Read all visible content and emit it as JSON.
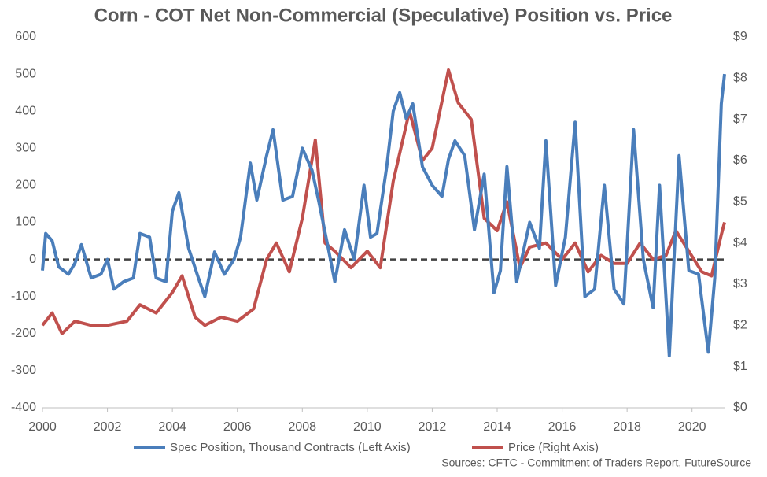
{
  "chart_data": {
    "type": "line",
    "title": "Corn - COT Net Non-Commercial (Speculative) Position vs. Price",
    "source": "Sources: CFTC - Commitment of Traders Report, FutureSource",
    "xlim": [
      2000,
      2021
    ],
    "xticks": [
      2000,
      2002,
      2004,
      2006,
      2008,
      2010,
      2012,
      2014,
      2016,
      2018,
      2020
    ],
    "ylim": [
      -400,
      600
    ],
    "yticks": [
      -400,
      -300,
      -200,
      -100,
      0,
      100,
      200,
      300,
      400,
      500,
      600
    ],
    "y2lim": [
      0,
      9
    ],
    "y2ticks": [
      {
        "value": 0,
        "label": "$0"
      },
      {
        "value": 1,
        "label": "$1"
      },
      {
        "value": 2,
        "label": "$2"
      },
      {
        "value": 3,
        "label": "$3"
      },
      {
        "value": 4,
        "label": "$4"
      },
      {
        "value": 5,
        "label": "$5"
      },
      {
        "value": 6,
        "label": "$6"
      },
      {
        "value": 7,
        "label": "$7"
      },
      {
        "value": 8,
        "label": "$8"
      },
      {
        "value": 9,
        "label": "$9"
      }
    ],
    "zero_line": 0,
    "series": [
      {
        "name": "Spec Position, Thousand Contracts (Left Axis)",
        "color": "#4a7ebb",
        "x": [
          2000.0,
          2000.1,
          2000.3,
          2000.5,
          2000.8,
          2001.0,
          2001.2,
          2001.5,
          2001.8,
          2002.0,
          2002.2,
          2002.5,
          2002.8,
          2003.0,
          2003.3,
          2003.5,
          2003.8,
          2004.0,
          2004.2,
          2004.5,
          2004.8,
          2005.0,
          2005.3,
          2005.6,
          2005.9,
          2006.1,
          2006.4,
          2006.6,
          2006.9,
          2007.1,
          2007.4,
          2007.7,
          2008.0,
          2008.3,
          2008.5,
          2008.8,
          2009.0,
          2009.3,
          2009.6,
          2009.9,
          2010.1,
          2010.3,
          2010.6,
          2010.8,
          2011.0,
          2011.2,
          2011.4,
          2011.7,
          2012.0,
          2012.3,
          2012.5,
          2012.7,
          2013.0,
          2013.3,
          2013.6,
          2013.9,
          2014.1,
          2014.3,
          2014.6,
          2015.0,
          2015.3,
          2015.5,
          2015.8,
          2016.1,
          2016.4,
          2016.7,
          2017.0,
          2017.3,
          2017.6,
          2017.9,
          2018.2,
          2018.5,
          2018.8,
          2019.0,
          2019.3,
          2019.6,
          2019.9,
          2020.2,
          2020.5,
          2020.7,
          2020.9,
          2021.0
        ],
        "values": [
          -30,
          70,
          50,
          -20,
          -40,
          -10,
          40,
          -50,
          -40,
          0,
          -80,
          -60,
          -50,
          70,
          60,
          -50,
          -60,
          130,
          180,
          30,
          -50,
          -100,
          20,
          -40,
          0,
          60,
          260,
          160,
          280,
          350,
          160,
          170,
          300,
          240,
          160,
          30,
          -60,
          80,
          0,
          200,
          60,
          70,
          250,
          400,
          450,
          380,
          420,
          250,
          200,
          170,
          270,
          320,
          280,
          80,
          230,
          -90,
          -30,
          250,
          -60,
          100,
          30,
          320,
          -70,
          60,
          370,
          -100,
          -80,
          200,
          -80,
          -120,
          350,
          0,
          -130,
          200,
          -260,
          280,
          -30,
          -40,
          -250,
          -50,
          420,
          500
        ]
      },
      {
        "name": "Price (Right Axis)",
        "color": "#c0504d",
        "axis": "y2",
        "x": [
          2000.0,
          2000.3,
          2000.6,
          2001.0,
          2001.5,
          2002.0,
          2002.6,
          2003.0,
          2003.5,
          2004.0,
          2004.3,
          2004.7,
          2005.0,
          2005.5,
          2006.0,
          2006.5,
          2006.9,
          2007.2,
          2007.6,
          2008.0,
          2008.4,
          2008.7,
          2009.0,
          2009.5,
          2010.0,
          2010.4,
          2010.8,
          2011.3,
          2011.7,
          2012.0,
          2012.5,
          2012.8,
          2013.2,
          2013.6,
          2014.0,
          2014.3,
          2014.7,
          2015.0,
          2015.5,
          2016.0,
          2016.4,
          2016.8,
          2017.2,
          2017.6,
          2018.0,
          2018.4,
          2018.8,
          2019.2,
          2019.5,
          2019.9,
          2020.3,
          2020.6,
          2020.9,
          2021.0
        ],
        "values": [
          2.0,
          2.3,
          1.8,
          2.1,
          2.0,
          2.0,
          2.1,
          2.5,
          2.3,
          2.8,
          3.2,
          2.2,
          2.0,
          2.2,
          2.1,
          2.4,
          3.6,
          4.0,
          3.3,
          4.6,
          6.5,
          4.0,
          3.8,
          3.4,
          3.8,
          3.4,
          5.5,
          7.2,
          6.0,
          6.3,
          8.2,
          7.4,
          7.0,
          4.6,
          4.3,
          5.0,
          3.4,
          3.9,
          4.0,
          3.6,
          4.0,
          3.3,
          3.7,
          3.5,
          3.5,
          4.0,
          3.6,
          3.7,
          4.3,
          3.8,
          3.3,
          3.2,
          4.2,
          4.5
        ]
      }
    ]
  }
}
